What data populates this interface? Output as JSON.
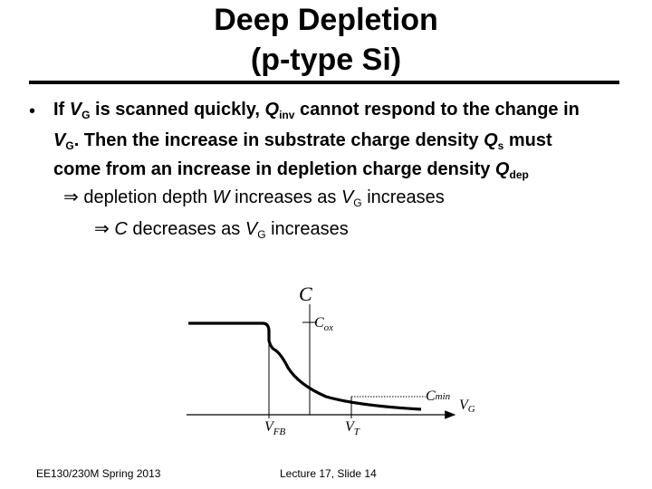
{
  "slide": {
    "title_line1": "Deep Depletion",
    "title_line2": "(p-type Si)",
    "bullet": {
      "t1": "If ",
      "t2": "V",
      "t3": "G",
      "t4": " is scanned quickly, ",
      "t5": "Q",
      "t6": "inv",
      "t7": " cannot respond to the change in",
      "t8": "V",
      "t9": "G",
      "t10": ".  Then the increase in substrate charge density ",
      "t11": "Q",
      "t12": "s",
      "t13": " must",
      "t14": "come from an increase in depletion charge density ",
      "t15": "Q",
      "t16": "dep"
    },
    "arrow1": {
      "symbol": "⇒",
      "a": " depletion depth ",
      "b": "W",
      "c": " increases as ",
      "d": "V",
      "e": "G",
      "f": " increases"
    },
    "arrow2": {
      "symbol": "⇒",
      "a": " ",
      "b": "C",
      "c": " decreases as ",
      "d": "V",
      "e": "G",
      "f": " increases"
    },
    "graph": {
      "y_axis": "C",
      "cox_main": "C",
      "cox_sub": "ox",
      "cmin_main": "C",
      "cmin_sub": "min",
      "x_axis_main": "V",
      "x_axis_sub": "G",
      "vfb_main": "V",
      "vfb_sub": "FB",
      "vt_main": "V",
      "vt_sub": "T"
    },
    "footer_left": "EE130/230M Spring 2013",
    "footer_center": "Lecture 17, Slide 14"
  }
}
